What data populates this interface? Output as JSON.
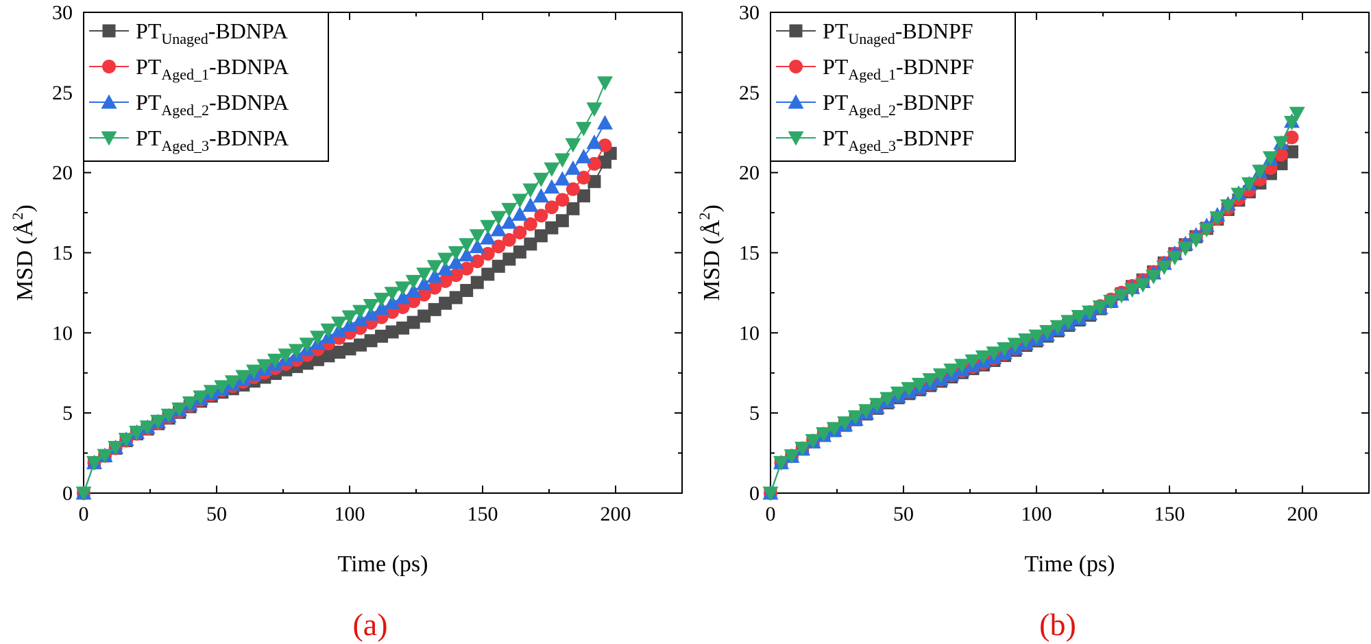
{
  "figure": {
    "panels": [
      {
        "label": "(a)"
      },
      {
        "label": "(b)"
      }
    ]
  },
  "colors": {
    "PT_Unaged": "#4d4d4d",
    "PT_Aged_1": "#f0383e",
    "PT_Aged_2": "#2f6fe0",
    "PT_Aged_3": "#2ea868"
  },
  "chart_data": [
    {
      "type": "line",
      "panel": "(a)",
      "title": "",
      "xlabel": "Time (ps)",
      "ylabel": "MSD (Å²)",
      "ylabel_main": "MSD (Å",
      "ylabel_sup": "2",
      "ylabel_close": ")",
      "xlim": [
        0,
        225
      ],
      "ylim": [
        0,
        30
      ],
      "xticks": [
        0,
        50,
        100,
        150,
        200
      ],
      "yticks": [
        0,
        5,
        10,
        15,
        20,
        25,
        30
      ],
      "xtick_labels": [
        "0",
        "50",
        "100",
        "150",
        "200"
      ],
      "ytick_labels": [
        "0",
        "5",
        "10",
        "15",
        "20",
        "25",
        "30"
      ],
      "legend_position": "top-left",
      "marker_step_ps": 4,
      "series": [
        {
          "name": "PT_Unaged-BDNPA",
          "base": "PT",
          "sub": "Unaged",
          "suffix": "-BDNPA",
          "marker": "square",
          "color": "#4d4d4d",
          "t_end": 198,
          "keys": [
            [
              0,
              0
            ],
            [
              4,
              1.9
            ],
            [
              20,
              3.7
            ],
            [
              50,
              6.2
            ],
            [
              80,
              7.9
            ],
            [
              100,
              9.0
            ],
            [
              120,
              10.3
            ],
            [
              140,
              12.2
            ],
            [
              160,
              14.6
            ],
            [
              180,
              17.0
            ],
            [
              190,
              18.9
            ],
            [
              198,
              21.2
            ]
          ]
        },
        {
          "name": "PT_Aged_1-BDNPA",
          "base": "PT",
          "sub": "Aged_1",
          "suffix": "-BDNPA",
          "marker": "circle",
          "color": "#f0383e",
          "t_end": 196,
          "keys": [
            [
              0,
              0
            ],
            [
              4,
              1.9
            ],
            [
              20,
              3.7
            ],
            [
              50,
              6.3
            ],
            [
              80,
              8.3
            ],
            [
              100,
              10.0
            ],
            [
              120,
              11.6
            ],
            [
              140,
              13.6
            ],
            [
              160,
              15.8
            ],
            [
              180,
              18.3
            ],
            [
              190,
              20.0
            ],
            [
              196,
              21.7
            ]
          ]
        },
        {
          "name": "PT_Aged_2-BDNPA",
          "base": "PT",
          "sub": "Aged_2",
          "suffix": "-BDNPA",
          "marker": "triangle-up",
          "color": "#2f6fe0",
          "t_end": 196,
          "keys": [
            [
              0,
              0
            ],
            [
              4,
              1.9
            ],
            [
              20,
              3.8
            ],
            [
              50,
              6.4
            ],
            [
              80,
              8.6
            ],
            [
              100,
              10.5
            ],
            [
              120,
              12.2
            ],
            [
              140,
              14.4
            ],
            [
              160,
              16.9
            ],
            [
              180,
              19.6
            ],
            [
              190,
              21.3
            ],
            [
              196,
              23.1
            ]
          ]
        },
        {
          "name": "PT_Aged_3-BDNPA",
          "base": "PT",
          "sub": "Aged_3",
          "suffix": "-BDNPA",
          "marker": "triangle-down",
          "color": "#2ea868",
          "t_end": 196,
          "keys": [
            [
              0,
              0
            ],
            [
              4,
              1.9
            ],
            [
              20,
              3.8
            ],
            [
              50,
              6.5
            ],
            [
              80,
              8.9
            ],
            [
              100,
              11.0
            ],
            [
              120,
              12.8
            ],
            [
              140,
              15.0
            ],
            [
              160,
              17.7
            ],
            [
              180,
              20.8
            ],
            [
              190,
              23.2
            ],
            [
              196,
              25.6
            ]
          ]
        }
      ]
    },
    {
      "type": "line",
      "panel": "(b)",
      "title": "",
      "xlabel": "Time (ps)",
      "ylabel": "MSD (Å²)",
      "ylabel_main": "MSD (Å",
      "ylabel_sup": "2",
      "ylabel_close": ")",
      "xlim": [
        0,
        225
      ],
      "ylim": [
        0,
        30
      ],
      "xticks": [
        0,
        50,
        100,
        150,
        200
      ],
      "yticks": [
        0,
        5,
        10,
        15,
        20,
        25,
        30
      ],
      "xtick_labels": [
        "0",
        "50",
        "100",
        "150",
        "200"
      ],
      "ytick_labels": [
        "0",
        "5",
        "10",
        "15",
        "20",
        "25",
        "30"
      ],
      "legend_position": "top-left",
      "marker_step_ps": 4,
      "series": [
        {
          "name": "PT_Unaged-BDNPF",
          "base": "PT",
          "sub": "Unaged",
          "suffix": "-BDNPF",
          "marker": "square",
          "color": "#4d4d4d",
          "t_end": 196,
          "keys": [
            [
              0,
              0
            ],
            [
              4,
              1.9
            ],
            [
              20,
              3.6
            ],
            [
              50,
              6.1
            ],
            [
              80,
              8.0
            ],
            [
              100,
              9.5
            ],
            [
              120,
              11.1
            ],
            [
              140,
              13.3
            ],
            [
              160,
              16.0
            ],
            [
              180,
              18.8
            ],
            [
              190,
              20.2
            ],
            [
              196,
              21.3
            ]
          ]
        },
        {
          "name": "PT_Aged_1-BDNPF",
          "base": "PT",
          "sub": "Aged_1",
          "suffix": "-BDNPF",
          "marker": "circle",
          "color": "#f0383e",
          "t_end": 196,
          "keys": [
            [
              0,
              0
            ],
            [
              4,
              1.9
            ],
            [
              20,
              3.7
            ],
            [
              50,
              6.2
            ],
            [
              80,
              8.1
            ],
            [
              100,
              9.6
            ],
            [
              120,
              11.3
            ],
            [
              140,
              13.3
            ],
            [
              160,
              16.0
            ],
            [
              180,
              18.9
            ],
            [
              190,
              20.6
            ],
            [
              196,
              22.2
            ]
          ]
        },
        {
          "name": "PT_Aged_2-BDNPF",
          "base": "PT",
          "sub": "Aged_2",
          "suffix": "-BDNPF",
          "marker": "triangle-up",
          "color": "#2f6fe0",
          "t_end": 196,
          "keys": [
            [
              0,
              0
            ],
            [
              4,
              1.9
            ],
            [
              20,
              3.6
            ],
            [
              50,
              6.2
            ],
            [
              80,
              8.2
            ],
            [
              100,
              9.6
            ],
            [
              120,
              11.2
            ],
            [
              140,
              13.2
            ],
            [
              160,
              16.1
            ],
            [
              180,
              19.3
            ],
            [
              190,
              21.2
            ],
            [
              196,
              23.2
            ]
          ]
        },
        {
          "name": "PT_Aged_3-BDNPF",
          "base": "PT",
          "sub": "Aged_3",
          "suffix": "-BDNPF",
          "marker": "triangle-down",
          "color": "#2ea868",
          "t_end": 198,
          "keys": [
            [
              0,
              0
            ],
            [
              4,
              1.9
            ],
            [
              20,
              3.7
            ],
            [
              50,
              6.4
            ],
            [
              80,
              8.5
            ],
            [
              100,
              9.8
            ],
            [
              120,
              11.3
            ],
            [
              140,
              13.0
            ],
            [
              160,
              15.8
            ],
            [
              180,
              19.3
            ],
            [
              190,
              21.3
            ],
            [
              198,
              23.7
            ]
          ]
        }
      ]
    }
  ]
}
